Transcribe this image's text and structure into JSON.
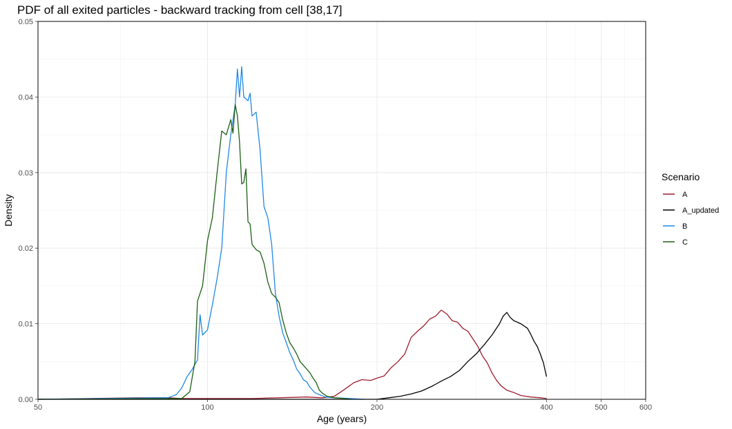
{
  "chart_data": {
    "type": "line",
    "title": "PDF of all exited particles - backward tracking from cell [38,17]",
    "xlabel": "Age (years)",
    "ylabel": "Density",
    "xscale": "log",
    "xlim": [
      50,
      600
    ],
    "ylim": [
      0,
      0.05
    ],
    "xticks": [
      50,
      100,
      200,
      400,
      500,
      600
    ],
    "yticks": [
      0.0,
      0.01,
      0.02,
      0.03,
      0.04,
      0.05
    ],
    "ytick_labels": [
      "0.00",
      "0.01",
      "0.02",
      "0.03",
      "0.04",
      "0.05"
    ],
    "grid": true,
    "legend": {
      "title": "Scenario",
      "position": "right"
    },
    "series": [
      {
        "name": "A",
        "color": "#9e1b2a",
        "points": [
          [
            50,
            0
          ],
          [
            75,
            0.0002
          ],
          [
            85,
            0.0002
          ],
          [
            90,
            0.0001
          ],
          [
            100,
            0.0001
          ],
          [
            120,
            0.0001
          ],
          [
            150,
            0.0003
          ],
          [
            160,
            0.0002
          ],
          [
            168,
            0.0004
          ],
          [
            175,
            0.0013
          ],
          [
            182,
            0.0022
          ],
          [
            188,
            0.0026
          ],
          [
            195,
            0.0025
          ],
          [
            200,
            0.0028
          ],
          [
            206,
            0.0031
          ],
          [
            212,
            0.0042
          ],
          [
            218,
            0.005
          ],
          [
            224,
            0.006
          ],
          [
            230,
            0.0082
          ],
          [
            236,
            0.009
          ],
          [
            242,
            0.0097
          ],
          [
            248,
            0.0106
          ],
          [
            254,
            0.011
          ],
          [
            260,
            0.0118
          ],
          [
            266,
            0.0113
          ],
          [
            272,
            0.0104
          ],
          [
            278,
            0.0102
          ],
          [
            284,
            0.0094
          ],
          [
            290,
            0.009
          ],
          [
            296,
            0.008
          ],
          [
            302,
            0.007
          ],
          [
            308,
            0.0057
          ],
          [
            314,
            0.0048
          ],
          [
            320,
            0.0035
          ],
          [
            326,
            0.0025
          ],
          [
            332,
            0.0018
          ],
          [
            340,
            0.0012
          ],
          [
            350,
            0.0009
          ],
          [
            360,
            0.0005
          ],
          [
            375,
            0.0003
          ],
          [
            390,
            0.0002
          ],
          [
            400,
            0.0001
          ]
        ]
      },
      {
        "name": "A_updated",
        "color": "#000000",
        "points": [
          [
            50,
            0
          ],
          [
            200,
            0
          ],
          [
            210,
            0.0002
          ],
          [
            220,
            0.0004
          ],
          [
            230,
            0.0007
          ],
          [
            240,
            0.0011
          ],
          [
            250,
            0.0017
          ],
          [
            260,
            0.0024
          ],
          [
            270,
            0.003
          ],
          [
            280,
            0.0038
          ],
          [
            290,
            0.005
          ],
          [
            300,
            0.006
          ],
          [
            310,
            0.0072
          ],
          [
            320,
            0.0085
          ],
          [
            330,
            0.01
          ],
          [
            335,
            0.011
          ],
          [
            340,
            0.0115
          ],
          [
            345,
            0.0108
          ],
          [
            350,
            0.0104
          ],
          [
            355,
            0.0102
          ],
          [
            360,
            0.01
          ],
          [
            365,
            0.0097
          ],
          [
            370,
            0.0094
          ],
          [
            375,
            0.0086
          ],
          [
            380,
            0.0077
          ],
          [
            385,
            0.007
          ],
          [
            390,
            0.006
          ],
          [
            395,
            0.0048
          ],
          [
            400,
            0.003
          ]
        ]
      },
      {
        "name": "B",
        "color": "#1e88e5",
        "points": [
          [
            50,
            0
          ],
          [
            85,
            0.0002
          ],
          [
            88,
            0.0006
          ],
          [
            90,
            0.0015
          ],
          [
            92,
            0.003
          ],
          [
            94,
            0.004
          ],
          [
            96,
            0.0052
          ],
          [
            97,
            0.0112
          ],
          [
            98,
            0.0085
          ],
          [
            100,
            0.0092
          ],
          [
            102,
            0.0125
          ],
          [
            104,
            0.016
          ],
          [
            106,
            0.02
          ],
          [
            108,
            0.03
          ],
          [
            110,
            0.035
          ],
          [
            112,
            0.039
          ],
          [
            113,
            0.0437
          ],
          [
            114,
            0.04
          ],
          [
            115,
            0.044
          ],
          [
            116,
            0.04
          ],
          [
            118,
            0.0395
          ],
          [
            119,
            0.0405
          ],
          [
            120,
            0.0375
          ],
          [
            122,
            0.038
          ],
          [
            124,
            0.033
          ],
          [
            126,
            0.0255
          ],
          [
            128,
            0.024
          ],
          [
            130,
            0.0205
          ],
          [
            132,
            0.014
          ],
          [
            134,
            0.011
          ],
          [
            136,
            0.0088
          ],
          [
            138,
            0.0075
          ],
          [
            140,
            0.0062
          ],
          [
            142,
            0.0052
          ],
          [
            144,
            0.004
          ],
          [
            146,
            0.0034
          ],
          [
            148,
            0.0026
          ],
          [
            150,
            0.0023
          ],
          [
            152,
            0.0016
          ],
          [
            155,
            0.0009
          ],
          [
            158,
            0.0006
          ],
          [
            162,
            0.0003
          ],
          [
            168,
            0.0002
          ],
          [
            180,
            0.0001
          ],
          [
            190,
            0
          ]
        ]
      },
      {
        "name": "C",
        "color": "#1b5e12",
        "points": [
          [
            50,
            0
          ],
          [
            90,
            0.0001
          ],
          [
            93,
            0.001
          ],
          [
            95,
            0.005
          ],
          [
            96,
            0.013
          ],
          [
            98,
            0.015
          ],
          [
            100,
            0.021
          ],
          [
            102,
            0.024
          ],
          [
            104,
            0.03
          ],
          [
            106,
            0.0355
          ],
          [
            108,
            0.035
          ],
          [
            110,
            0.037
          ],
          [
            111,
            0.0352
          ],
          [
            112,
            0.039
          ],
          [
            113,
            0.0375
          ],
          [
            114,
            0.034
          ],
          [
            115,
            0.0285
          ],
          [
            116,
            0.0287
          ],
          [
            117,
            0.0305
          ],
          [
            118,
            0.0235
          ],
          [
            119,
            0.0232
          ],
          [
            120,
            0.0205
          ],
          [
            122,
            0.0198
          ],
          [
            124,
            0.0195
          ],
          [
            126,
            0.018
          ],
          [
            128,
            0.0155
          ],
          [
            130,
            0.014
          ],
          [
            132,
            0.0135
          ],
          [
            134,
            0.0128
          ],
          [
            136,
            0.0105
          ],
          [
            138,
            0.0088
          ],
          [
            140,
            0.0075
          ],
          [
            142,
            0.0068
          ],
          [
            144,
            0.006
          ],
          [
            146,
            0.005
          ],
          [
            148,
            0.0045
          ],
          [
            150,
            0.004
          ],
          [
            152,
            0.0035
          ],
          [
            154,
            0.0028
          ],
          [
            156,
            0.0022
          ],
          [
            158,
            0.0012
          ],
          [
            160,
            0.0008
          ],
          [
            163,
            0.0004
          ],
          [
            168,
            0.0002
          ],
          [
            175,
            0.0001
          ],
          [
            180,
            0
          ]
        ]
      }
    ]
  }
}
